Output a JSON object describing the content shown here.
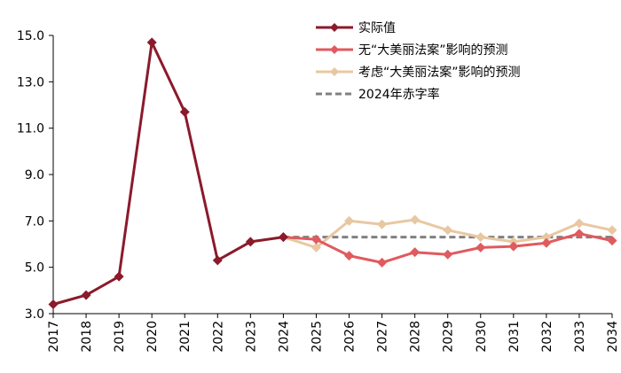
{
  "chart_data": {
    "type": "line",
    "title": "",
    "xlabel": "",
    "ylabel": "",
    "categories": [
      "2017",
      "2018",
      "2019",
      "2020",
      "2021",
      "2022",
      "2023",
      "2024",
      "2025",
      "2026",
      "2027",
      "2028",
      "2029",
      "2030",
      "2031",
      "2032",
      "2033",
      "2034"
    ],
    "yticks": [
      "3.0",
      "5.0",
      "7.0",
      "9.0",
      "11.0",
      "13.0",
      "15.0"
    ],
    "ylim": [
      3.0,
      15.0
    ],
    "grid": false,
    "legend_position": "top-right",
    "series": [
      {
        "name": "实际值",
        "color": "#8b1a2b",
        "style": "solid",
        "marker": "diamond",
        "values": [
          3.4,
          3.8,
          4.6,
          14.7,
          11.7,
          5.3,
          6.1,
          6.3,
          null,
          null,
          null,
          null,
          null,
          null,
          null,
          null,
          null,
          null
        ]
      },
      {
        "name": "无“大美丽法案”影响的预测",
        "color": "#e05a5e",
        "style": "solid",
        "marker": "diamond",
        "values": [
          null,
          null,
          null,
          null,
          null,
          null,
          null,
          6.3,
          6.2,
          5.5,
          5.2,
          5.65,
          5.55,
          5.85,
          5.9,
          6.05,
          6.45,
          6.15
        ]
      },
      {
        "name": "考虑“大美丽法案”影响的预测",
        "color": "#e8c8a2",
        "style": "solid",
        "marker": "diamond",
        "values": [
          null,
          null,
          null,
          null,
          null,
          null,
          null,
          6.3,
          5.85,
          7.0,
          6.85,
          7.05,
          6.6,
          6.3,
          6.1,
          6.3,
          6.9,
          6.6
        ]
      },
      {
        "name": "2024年赤字率",
        "color": "#808080",
        "style": "dashed",
        "marker": "none",
        "values": [
          null,
          null,
          null,
          null,
          null,
          null,
          null,
          6.3,
          6.3,
          6.3,
          6.3,
          6.3,
          6.3,
          6.3,
          6.3,
          6.3,
          6.3,
          6.3
        ]
      }
    ]
  }
}
